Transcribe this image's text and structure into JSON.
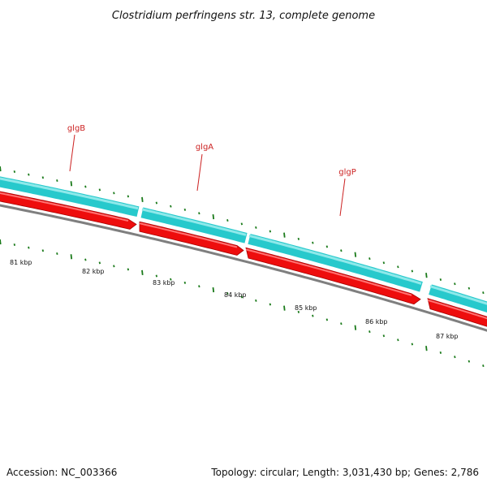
{
  "title": "Clostridium perfringens str. 13, complete genome",
  "footer": {
    "accession": "Accession: NC_003366",
    "summary": "Topology: circular; Length: 3,031,430 bp; Genes: 2,786"
  },
  "colors": {
    "gene_upper": "#27c9cc",
    "gene_lower": "#ee0d0d",
    "backbone": "#7f7f7f",
    "tick": "#1a7a1a",
    "gene_label": "#cc2222"
  },
  "genes": [
    {
      "name": "glgB"
    },
    {
      "name": "glgA"
    },
    {
      "name": "glgP"
    }
  ],
  "kbp_labels": [
    "81 kbp",
    "82 kbp",
    "83 kbp",
    "84 kbp",
    "85 kbp",
    "86 kbp",
    "87 kbp"
  ]
}
